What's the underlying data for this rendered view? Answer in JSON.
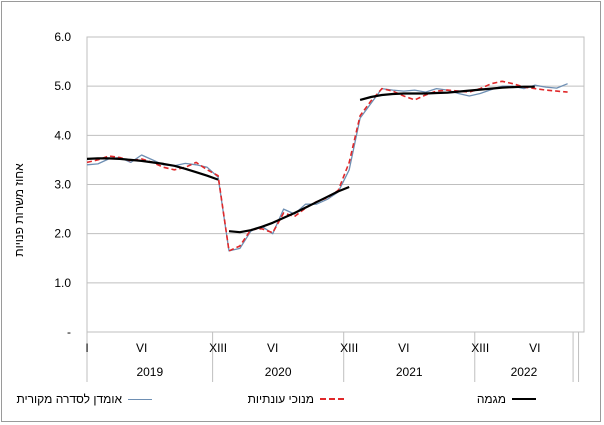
{
  "chart_data": {
    "type": "line",
    "ylabel": "אחוז משרות פנויות",
    "y_ticks": [
      "-",
      "1.0",
      "2.0",
      "3.0",
      "4.0",
      "5.0",
      "6.0"
    ],
    "ylim": [
      0,
      6
    ],
    "x_ticks": [
      {
        "label": "I",
        "month": 1
      },
      {
        "label": "VI",
        "month": 6
      },
      {
        "label": "XIII",
        "month": 13
      },
      {
        "label": "VI",
        "month": 18
      },
      {
        "label": "XIII",
        "month": 25
      },
      {
        "label": "VI",
        "month": 30
      },
      {
        "label": "XIII",
        "month": 37
      },
      {
        "label": "VI",
        "month": 42
      }
    ],
    "years": [
      {
        "label": "2019",
        "from": 1,
        "to": 12
      },
      {
        "label": "2020",
        "from": 13,
        "to": 24
      },
      {
        "label": "2021",
        "from": 25,
        "to": 36
      },
      {
        "label": "2022",
        "from": 37,
        "to": 45
      }
    ],
    "series": [
      {
        "name": "אומדן לסדרה מקורית",
        "color": "#6e8fb3",
        "style": "solid",
        "values": [
          [
            1,
            3.4
          ],
          [
            2,
            3.42
          ],
          [
            3,
            3.52
          ],
          [
            4,
            3.55
          ],
          [
            5,
            3.45
          ],
          [
            6,
            3.6
          ],
          [
            7,
            3.5
          ],
          [
            8,
            3.4
          ],
          [
            9,
            3.38
          ],
          [
            10,
            3.43
          ],
          [
            11,
            3.4
          ],
          [
            12,
            3.35
          ],
          [
            13,
            3.15
          ],
          [
            14,
            1.65
          ],
          [
            15,
            1.7
          ],
          [
            16,
            2.05
          ],
          [
            17,
            2.15
          ],
          [
            18,
            2.0
          ],
          [
            19,
            2.5
          ],
          [
            20,
            2.4
          ],
          [
            21,
            2.6
          ],
          [
            22,
            2.6
          ],
          [
            23,
            2.7
          ],
          [
            24,
            2.85
          ],
          [
            25,
            3.3
          ],
          [
            26,
            4.35
          ],
          [
            27,
            4.65
          ],
          [
            28,
            4.95
          ],
          [
            29,
            4.92
          ],
          [
            30,
            4.9
          ],
          [
            31,
            4.92
          ],
          [
            32,
            4.88
          ],
          [
            33,
            4.95
          ],
          [
            34,
            4.92
          ],
          [
            35,
            4.85
          ],
          [
            36,
            4.8
          ],
          [
            37,
            4.85
          ],
          [
            38,
            4.93
          ],
          [
            39,
            5.0
          ],
          [
            40,
            5.0
          ],
          [
            41,
            4.95
          ],
          [
            42,
            5.02
          ],
          [
            43,
            4.98
          ],
          [
            44,
            4.96
          ],
          [
            45,
            5.05
          ]
        ]
      },
      {
        "name": "מנוכי עונתיות",
        "color": "#e0282a",
        "style": "dashed",
        "values": [
          [
            1,
            3.45
          ],
          [
            2,
            3.5
          ],
          [
            3,
            3.58
          ],
          [
            4,
            3.55
          ],
          [
            5,
            3.48
          ],
          [
            6,
            3.52
          ],
          [
            7,
            3.45
          ],
          [
            8,
            3.35
          ],
          [
            9,
            3.3
          ],
          [
            10,
            3.35
          ],
          [
            11,
            3.45
          ],
          [
            12,
            3.3
          ],
          [
            13,
            3.18
          ],
          [
            14,
            1.65
          ],
          [
            15,
            1.75
          ],
          [
            16,
            2.08
          ],
          [
            17,
            2.1
          ],
          [
            18,
            2.02
          ],
          [
            19,
            2.42
          ],
          [
            20,
            2.35
          ],
          [
            21,
            2.52
          ],
          [
            22,
            2.65
          ],
          [
            23,
            2.73
          ],
          [
            24,
            2.88
          ],
          [
            25,
            3.45
          ],
          [
            26,
            4.4
          ],
          [
            27,
            4.7
          ],
          [
            28,
            4.95
          ],
          [
            29,
            4.9
          ],
          [
            30,
            4.8
          ],
          [
            31,
            4.72
          ],
          [
            32,
            4.82
          ],
          [
            33,
            4.9
          ],
          [
            34,
            4.92
          ],
          [
            35,
            4.9
          ],
          [
            36,
            4.88
          ],
          [
            37,
            4.95
          ],
          [
            38,
            5.05
          ],
          [
            39,
            5.1
          ],
          [
            40,
            5.05
          ],
          [
            41,
            4.98
          ],
          [
            42,
            4.95
          ],
          [
            43,
            4.92
          ],
          [
            44,
            4.9
          ],
          [
            45,
            4.88
          ]
        ]
      },
      {
        "name": "מגמה",
        "color": "#000000",
        "style": "solid-thick",
        "values": [
          [
            1,
            3.52
          ],
          [
            2,
            3.53
          ],
          [
            3,
            3.53
          ],
          [
            4,
            3.52
          ],
          [
            5,
            3.5
          ],
          [
            6,
            3.48
          ],
          [
            7,
            3.45
          ],
          [
            8,
            3.42
          ],
          [
            9,
            3.38
          ],
          [
            10,
            3.32
          ],
          [
            11,
            3.25
          ],
          [
            12,
            3.18
          ],
          [
            13,
            3.1
          ],
          [
            14,
            2.05
          ],
          [
            15,
            2.03
          ],
          [
            16,
            2.07
          ],
          [
            17,
            2.14
          ],
          [
            18,
            2.22
          ],
          [
            19,
            2.32
          ],
          [
            20,
            2.42
          ],
          [
            21,
            2.53
          ],
          [
            22,
            2.64
          ],
          [
            23,
            2.75
          ],
          [
            24,
            2.86
          ],
          [
            25,
            2.95
          ],
          [
            26,
            4.72
          ],
          [
            27,
            4.78
          ],
          [
            28,
            4.82
          ],
          [
            29,
            4.84
          ],
          [
            30,
            4.85
          ],
          [
            31,
            4.85
          ],
          [
            32,
            4.85
          ],
          [
            33,
            4.86
          ],
          [
            34,
            4.87
          ],
          [
            35,
            4.89
          ],
          [
            36,
            4.91
          ],
          [
            37,
            4.93
          ],
          [
            38,
            4.95
          ],
          [
            39,
            4.97
          ],
          [
            40,
            4.98
          ],
          [
            41,
            4.99
          ],
          [
            42,
            4.99
          ]
        ]
      }
    ],
    "legend_position": "bottom"
  }
}
